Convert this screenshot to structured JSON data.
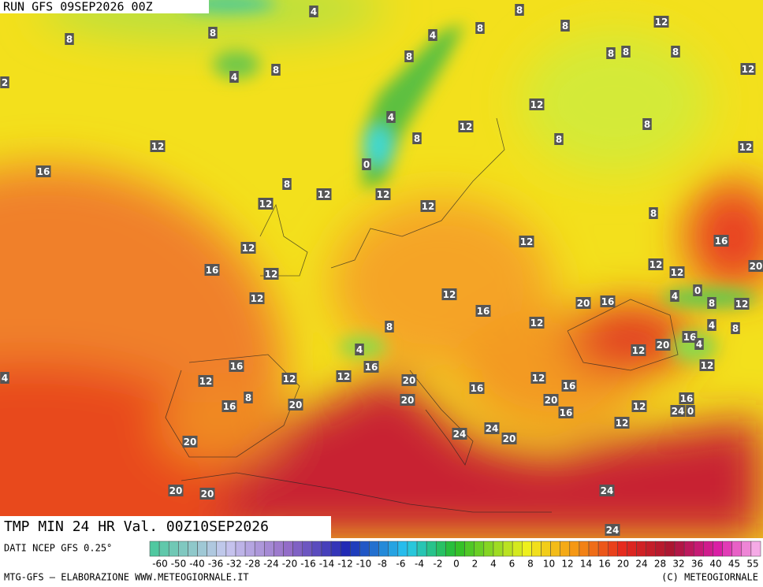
{
  "header": {
    "run": "RUN GFS 09SEP2026 00Z"
  },
  "footer": {
    "title": "TMP MIN 24 HR Val. 00Z10SEP2026",
    "source": "DATI NCEP GFS 0.25°",
    "credit": "MTG-GFS — ELABORAZIONE WWW.METEOGIORNALE.IT",
    "copyright": "(C) METEOGIORNALE"
  },
  "map": {
    "labels": [
      4,
      8,
      8,
      8,
      4,
      8,
      8,
      12,
      8,
      8,
      8,
      8,
      4,
      8,
      2,
      12,
      12,
      4,
      12,
      8,
      8,
      8,
      12,
      12,
      0,
      16,
      8,
      12,
      12,
      12,
      12,
      8,
      12,
      12,
      16,
      16,
      12,
      12,
      12,
      20,
      0,
      4,
      12,
      12,
      20,
      16,
      8,
      12,
      16,
      12,
      8,
      4,
      8,
      4,
      16,
      4,
      20,
      12,
      12,
      16,
      16,
      12,
      4,
      12,
      12,
      12,
      20,
      16,
      16,
      8,
      16,
      20,
      20,
      20,
      16,
      24,
      0,
      12,
      16,
      12,
      24,
      24,
      20,
      20,
      20,
      20,
      24,
      24
    ]
  },
  "legend": {
    "ticks": [
      -60,
      -50,
      -40,
      -36,
      -32,
      -28,
      -24,
      -20,
      -16,
      -14,
      -12,
      -10,
      -8,
      -6,
      -4,
      -2,
      0,
      2,
      4,
      6,
      8,
      10,
      12,
      14,
      16,
      20,
      24,
      28,
      32,
      36,
      40,
      45,
      55
    ]
  }
}
